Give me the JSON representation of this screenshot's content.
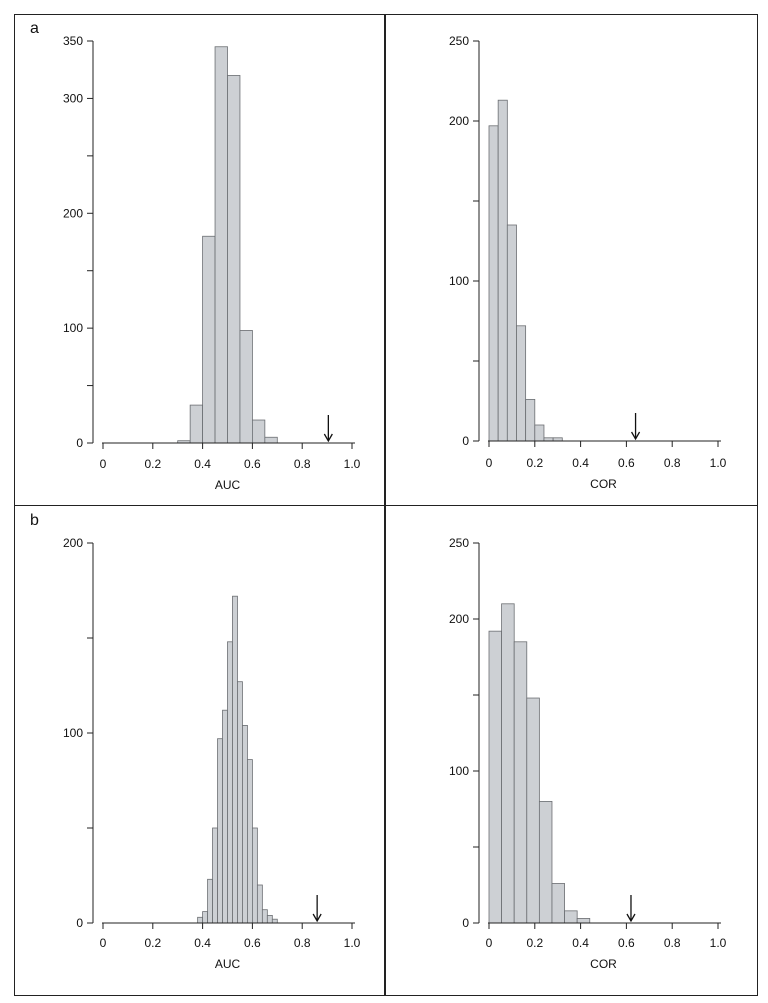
{
  "panels": [
    {
      "letter": "a"
    },
    {
      "letter": "b"
    }
  ],
  "chart_data": [
    {
      "type": "bar",
      "panel": "a",
      "xlabel": "AUC",
      "xlim": [
        0,
        1.0
      ],
      "ylim": [
        0,
        350
      ],
      "x_ticks": [
        "0",
        "0.2",
        "0.4",
        "0.6",
        "0.8",
        "1.0"
      ],
      "y_ticks": [
        {
          "value": 0,
          "label": "0"
        },
        {
          "value": 50,
          "label": ""
        },
        {
          "value": 100,
          "label": "100"
        },
        {
          "value": 150,
          "label": ""
        },
        {
          "value": 200,
          "label": "200"
        },
        {
          "value": 250,
          "label": ""
        },
        {
          "value": 300,
          "label": "300"
        },
        {
          "value": 350,
          "label": "350"
        }
      ],
      "bin_width": 0.05,
      "bins": [
        {
          "x": 0.3,
          "value": 2
        },
        {
          "x": 0.35,
          "value": 33
        },
        {
          "x": 0.4,
          "value": 180
        },
        {
          "x": 0.45,
          "value": 345
        },
        {
          "x": 0.5,
          "value": 320
        },
        {
          "x": 0.55,
          "value": 98
        },
        {
          "x": 0.6,
          "value": 20
        },
        {
          "x": 0.65,
          "value": 5
        }
      ],
      "arrow_x": 0.905,
      "color": "#cdd0d4"
    },
    {
      "type": "bar",
      "panel": "a",
      "xlabel": "COR",
      "xlim": [
        0,
        1.0
      ],
      "ylim": [
        0,
        250
      ],
      "x_ticks": [
        "0",
        "0.2",
        "0.4",
        "0.6",
        "0.8",
        "1.0"
      ],
      "y_ticks": [
        {
          "value": 0,
          "label": "0"
        },
        {
          "value": 50,
          "label": ""
        },
        {
          "value": 100,
          "label": "100"
        },
        {
          "value": 150,
          "label": ""
        },
        {
          "value": 200,
          "label": "200"
        },
        {
          "value": 250,
          "label": "250"
        }
      ],
      "bin_width": 0.04,
      "bins": [
        {
          "x": 0.0,
          "value": 197
        },
        {
          "x": 0.04,
          "value": 213
        },
        {
          "x": 0.08,
          "value": 135
        },
        {
          "x": 0.12,
          "value": 72
        },
        {
          "x": 0.16,
          "value": 26
        },
        {
          "x": 0.2,
          "value": 10
        },
        {
          "x": 0.24,
          "value": 2
        },
        {
          "x": 0.28,
          "value": 2
        }
      ],
      "arrow_x": 0.64,
      "color": "#cdd0d4"
    },
    {
      "type": "bar",
      "panel": "b",
      "xlabel": "AUC",
      "xlim": [
        0,
        1.0
      ],
      "ylim": [
        0,
        200
      ],
      "x_ticks": [
        "0",
        "0.2",
        "0.4",
        "0.6",
        "0.8",
        "1.0"
      ],
      "y_ticks": [
        {
          "value": 0,
          "label": "0"
        },
        {
          "value": 50,
          "label": ""
        },
        {
          "value": 100,
          "label": "100"
        },
        {
          "value": 150,
          "label": ""
        },
        {
          "value": 200,
          "label": "200"
        }
      ],
      "bin_width": 0.02,
      "bins": [
        {
          "x": 0.38,
          "value": 3
        },
        {
          "x": 0.4,
          "value": 6
        },
        {
          "x": 0.42,
          "value": 23
        },
        {
          "x": 0.44,
          "value": 50
        },
        {
          "x": 0.46,
          "value": 97
        },
        {
          "x": 0.48,
          "value": 112
        },
        {
          "x": 0.5,
          "value": 148
        },
        {
          "x": 0.52,
          "value": 172
        },
        {
          "x": 0.54,
          "value": 127
        },
        {
          "x": 0.56,
          "value": 104
        },
        {
          "x": 0.58,
          "value": 86
        },
        {
          "x": 0.6,
          "value": 50
        },
        {
          "x": 0.62,
          "value": 20
        },
        {
          "x": 0.64,
          "value": 7
        },
        {
          "x": 0.66,
          "value": 4
        },
        {
          "x": 0.68,
          "value": 2
        }
      ],
      "arrow_x": 0.86,
      "color": "#cdd0d4"
    },
    {
      "type": "bar",
      "panel": "b",
      "xlabel": "COR",
      "xlim": [
        0,
        1.0
      ],
      "ylim": [
        0,
        250
      ],
      "x_ticks": [
        "0",
        "0.2",
        "0.4",
        "0.6",
        "0.8",
        "1.0"
      ],
      "y_ticks": [
        {
          "value": 0,
          "label": "0"
        },
        {
          "value": 50,
          "label": ""
        },
        {
          "value": 100,
          "label": "100"
        },
        {
          "value": 150,
          "label": ""
        },
        {
          "value": 200,
          "label": "200"
        },
        {
          "value": 250,
          "label": "250"
        }
      ],
      "bin_width": 0.055,
      "bins": [
        {
          "x": 0.0,
          "value": 192
        },
        {
          "x": 0.055,
          "value": 210
        },
        {
          "x": 0.11,
          "value": 185
        },
        {
          "x": 0.165,
          "value": 148
        },
        {
          "x": 0.22,
          "value": 80
        },
        {
          "x": 0.275,
          "value": 26
        },
        {
          "x": 0.33,
          "value": 8
        },
        {
          "x": 0.385,
          "value": 3
        }
      ],
      "arrow_x": 0.62,
      "color": "#cdd0d4"
    }
  ]
}
